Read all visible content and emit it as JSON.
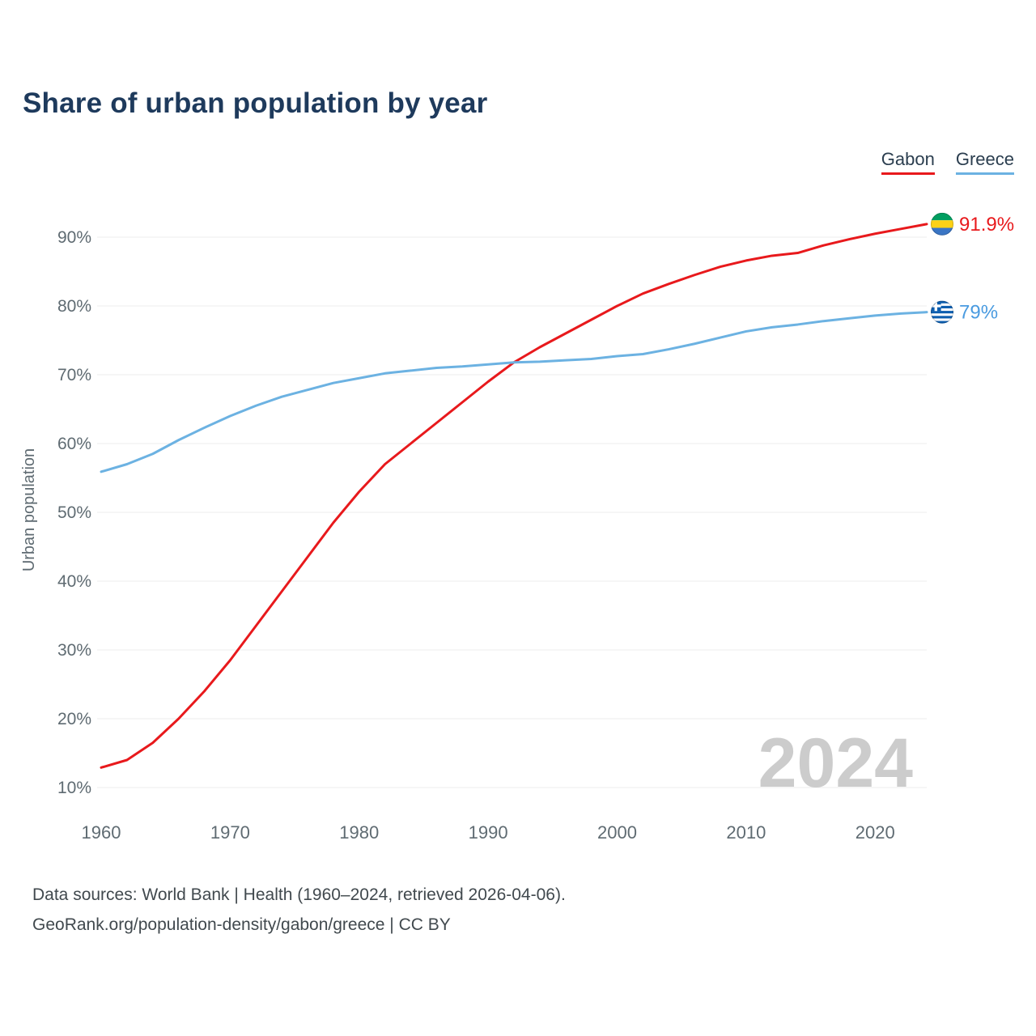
{
  "title": "Share of urban population by year",
  "legend": [
    {
      "label": "Gabon",
      "color": "#e8191c"
    },
    {
      "label": "Greece",
      "color": "#6cb2e2"
    }
  ],
  "watermark": "2024",
  "end_labels": [
    {
      "series": "Gabon",
      "value_label": "91.9%",
      "flag": "gabon-flag",
      "color": "#e8191c"
    },
    {
      "series": "Greece",
      "value_label": "79%",
      "flag": "greece-flag",
      "color": "#4a9be0"
    }
  ],
  "footer": {
    "line1": "Data sources: World Bank | Health (1960–2024, retrieved 2026-04-06).",
    "line2": "GeoRank.org/population-density/gabon/greece | CC BY"
  },
  "chart_data": {
    "type": "line",
    "title": "Share of urban population by year",
    "xlabel": "",
    "ylabel": "Urban population",
    "grid": "horizontal",
    "legend_position": "top-right",
    "xlim": [
      1960,
      2024
    ],
    "ylim": [
      8,
      97
    ],
    "x_ticks": [
      1960,
      1970,
      1980,
      1990,
      2000,
      2010,
      2020
    ],
    "y_ticks_percent": [
      10,
      20,
      30,
      40,
      50,
      60,
      70,
      80,
      90
    ],
    "x": [
      1960,
      1962,
      1964,
      1966,
      1968,
      1970,
      1972,
      1974,
      1976,
      1978,
      1980,
      1982,
      1984,
      1986,
      1988,
      1990,
      1992,
      1994,
      1996,
      1998,
      2000,
      2002,
      2004,
      2006,
      2008,
      2010,
      2012,
      2014,
      2016,
      2018,
      2020,
      2022,
      2024
    ],
    "series": [
      {
        "name": "Gabon",
        "color": "#e8191c",
        "values": [
          12.9,
          14.0,
          16.5,
          20.0,
          24.0,
          28.5,
          33.5,
          38.5,
          43.5,
          48.5,
          53.0,
          57.0,
          60.0,
          63.0,
          66.0,
          69.0,
          71.8,
          74.0,
          76.0,
          78.0,
          80.0,
          81.8,
          83.2,
          84.5,
          85.7,
          86.6,
          87.3,
          87.7,
          88.8,
          89.7,
          90.5,
          91.2,
          91.9
        ]
      },
      {
        "name": "Greece",
        "color": "#6cb2e2",
        "values": [
          55.9,
          57.0,
          58.5,
          60.5,
          62.3,
          64.0,
          65.5,
          66.8,
          67.8,
          68.8,
          69.5,
          70.2,
          70.6,
          71.0,
          71.2,
          71.5,
          71.8,
          71.9,
          72.1,
          72.3,
          72.7,
          73.0,
          73.7,
          74.5,
          75.4,
          76.3,
          76.9,
          77.3,
          77.8,
          78.2,
          78.6,
          78.9,
          79.1
        ]
      }
    ]
  }
}
